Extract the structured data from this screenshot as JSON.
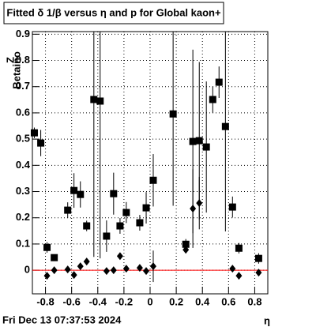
{
  "chart_data": {
    "type": "scatter",
    "title": "Fitted δ 1/β versus η and p for Global kaon+",
    "y_label": "Z",
    "y_label_sub": "Betaino",
    "x_label": "η",
    "timestamp": "Fri Dec 13 07:37:53 2024",
    "xlim": [
      -0.9,
      0.9
    ],
    "ylim": [
      -0.09,
      0.91
    ],
    "xticks": [
      -0.8,
      -0.6,
      -0.4,
      -0.2,
      0,
      0.2,
      0.4,
      0.6,
      0.8
    ],
    "yticks": [
      0,
      0.1,
      0.2,
      0.3,
      0.4,
      0.5,
      0.6,
      0.7,
      0.8,
      0.9
    ],
    "grid": true,
    "reference_line": {
      "y": 0,
      "color": "#ff0000"
    },
    "series": [
      {
        "marker": "square",
        "color": "#000000",
        "x": [
          -0.885,
          -0.836,
          -0.788,
          -0.733,
          -0.63,
          -0.582,
          -0.533,
          -0.485,
          -0.43,
          -0.382,
          -0.333,
          -0.279,
          -0.23,
          -0.182,
          -0.079,
          -0.03,
          0.024,
          0.176,
          0.273,
          0.327,
          0.376,
          0.43,
          0.479,
          0.527,
          0.576,
          0.63,
          0.679,
          0.83
        ],
        "values": [
          0.524,
          0.485,
          0.087,
          0.048,
          0.229,
          0.304,
          0.289,
          0.169,
          0.651,
          0.645,
          0.13,
          0.292,
          0.169,
          0.22,
          0.181,
          0.238,
          0.343,
          0.596,
          0.099,
          0.491,
          0.494,
          0.47,
          0.651,
          0.717,
          0.548,
          0.241,
          0.084,
          0.045
        ],
        "errors": [
          0.02,
          0.05,
          0.02,
          0.01,
          0.03,
          0.066,
          0.05,
          0.02,
          0.6,
          0.6,
          0.06,
          0.08,
          0.03,
          0.04,
          0.03,
          0.06,
          0.1,
          0.35,
          0.02,
          0.35,
          0.3,
          0.25,
          0.05,
          0.06,
          0.4,
          0.04,
          0.02,
          0.02
        ]
      },
      {
        "marker": "diamond",
        "color": "#000000",
        "x": [
          -0.788,
          -0.733,
          -0.63,
          -0.582,
          -0.533,
          -0.485,
          -0.333,
          -0.279,
          -0.23,
          -0.182,
          -0.079,
          -0.03,
          0.024,
          0.273,
          0.327,
          0.376,
          0.63,
          0.679,
          0.83
        ],
        "values": [
          -0.021,
          0.0,
          0.003,
          -0.018,
          0.015,
          0.033,
          -0.003,
          0.0,
          0.054,
          0.006,
          0.009,
          -0.003,
          0.015,
          0.078,
          0.235,
          0.256,
          0.006,
          -0.021,
          -0.009
        ],
        "errors": [
          0.01,
          0.01,
          0.01,
          0.01,
          0.01,
          0.01,
          0.01,
          0.01,
          0.01,
          0.01,
          0.01,
          0.01,
          0.06,
          0.01,
          0.15,
          0.1,
          0.01,
          0.01,
          0.01
        ]
      }
    ]
  }
}
